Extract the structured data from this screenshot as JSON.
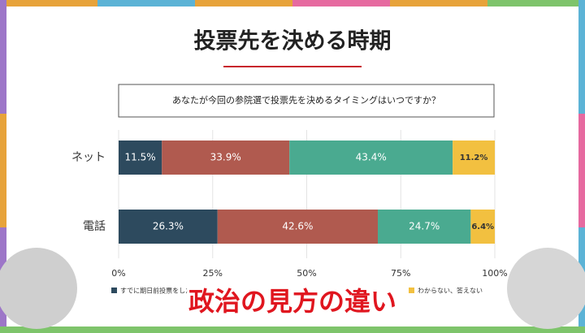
{
  "chart_data": {
    "type": "stacked-bar-horizontal",
    "title": "投票先を決める時期",
    "question": "あなたが今回の参院選で投票先を決めるタイミングはいつですか？",
    "categories": [
      "ネット",
      "電話"
    ],
    "series": [
      {
        "name": "すでに期日前投票をした",
        "color": "#2d4a5e",
        "values": [
          11.5,
          26.3
        ],
        "value_labels": [
          "11.5%",
          "26.3%"
        ]
      },
      {
        "color": "#b05a4f",
        "values": [
          33.9,
          42.6
        ],
        "value_labels": [
          "33.9%",
          "42.6%"
        ]
      },
      {
        "color": "#4aaa90",
        "values": [
          43.4,
          24.7
        ],
        "value_labels": [
          "43.4%",
          "24.7%"
        ]
      },
      {
        "name": "わからない、答えない",
        "color": "#f2c040",
        "values": [
          11.2,
          6.4
        ],
        "value_labels": [
          "11.2%",
          "6.4%"
        ]
      }
    ],
    "xlim": [
      0,
      100
    ],
    "xticks": [
      {
        "value": 0,
        "label": "0%"
      },
      {
        "value": 25,
        "label": "25%"
      },
      {
        "value": 50,
        "label": "50%"
      },
      {
        "value": 75,
        "label": "75%"
      },
      {
        "value": 100,
        "label": "100%"
      }
    ],
    "grid": true,
    "caption": "政治の見方の違い"
  }
}
